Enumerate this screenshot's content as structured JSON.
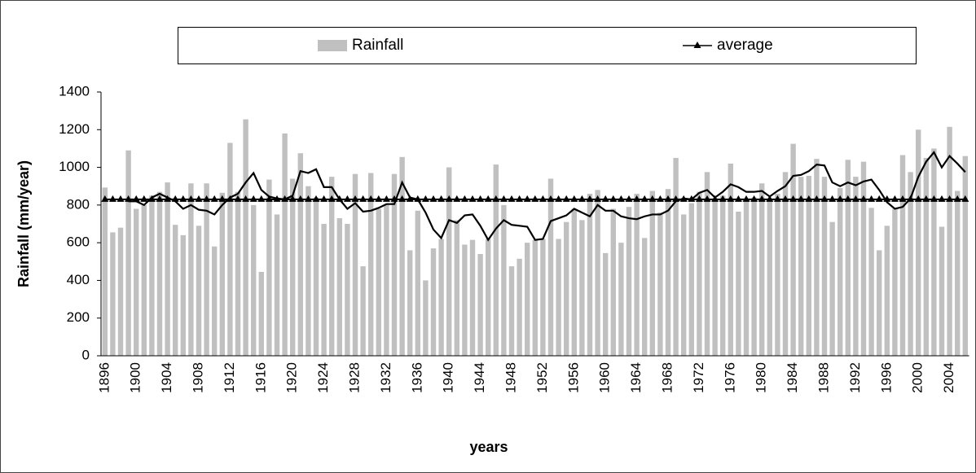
{
  "chart_data": {
    "type": "bar",
    "x_label": "years",
    "y_label": "Rainfall (mm/year)",
    "categories": [
      "1896",
      null,
      null,
      null,
      "1900",
      null,
      null,
      null,
      "1904",
      null,
      null,
      null,
      "1908",
      null,
      null,
      null,
      "1912",
      null,
      null,
      null,
      "1916",
      null,
      null,
      null,
      "1920",
      null,
      null,
      null,
      "1924",
      null,
      null,
      null,
      "1928",
      null,
      null,
      null,
      "1932",
      null,
      null,
      null,
      "1936",
      null,
      null,
      null,
      "1940",
      null,
      null,
      null,
      "1944",
      null,
      null,
      null,
      "1948",
      null,
      null,
      null,
      "1952",
      null,
      null,
      null,
      "1956",
      null,
      null,
      null,
      "1960",
      null,
      null,
      null,
      "1964",
      null,
      null,
      null,
      "1968",
      null,
      null,
      null,
      "1972",
      null,
      null,
      null,
      "1976",
      null,
      null,
      null,
      "1980",
      null,
      null,
      null,
      "1984",
      null,
      null,
      null,
      "1988",
      null,
      null,
      null,
      "1992",
      null,
      null,
      null,
      "1996",
      null,
      null,
      null,
      "2000",
      null,
      null,
      null,
      "2004",
      null,
      null
    ],
    "series": [
      {
        "name": "Rainfall",
        "type": "bar",
        "color": "#c0c0c0",
        "values": [
          893,
          655,
          680,
          1090,
          780,
          800,
          850,
          870,
          920,
          695,
          640,
          915,
          690,
          915,
          580,
          865,
          1130,
          870,
          1255,
          800,
          445,
          935,
          750,
          1180,
          940,
          1075,
          900,
          840,
          700,
          950,
          730,
          700,
          965,
          475,
          970,
          780,
          800,
          965,
          1055,
          560,
          770,
          400,
          570,
          620,
          1000,
          720,
          590,
          615,
          540,
          620,
          1015,
          800,
          475,
          515,
          600,
          615,
          620,
          940,
          620,
          710,
          780,
          720,
          860,
          880,
          545,
          780,
          600,
          790,
          860,
          625,
          875,
          760,
          885,
          1050,
          750,
          810,
          870,
          975,
          820,
          850,
          1020,
          765,
          820,
          840,
          915,
          830,
          860,
          975,
          1125,
          950,
          955,
          1045,
          950,
          710,
          890,
          1040,
          950,
          1030,
          785,
          560,
          690,
          780,
          1065,
          975,
          1200,
          1050,
          1100,
          685,
          1215,
          875,
          1060
        ]
      },
      {
        "type": "line",
        "color": "#000000",
        "values": [
          null,
          null,
          null,
          820,
          820,
          800,
          840,
          860,
          840,
          820,
          780,
          800,
          775,
          770,
          750,
          800,
          840,
          860,
          920,
          970,
          880,
          845,
          835,
          830,
          850,
          980,
          970,
          990,
          895,
          895,
          830,
          780,
          810,
          765,
          770,
          785,
          805,
          805,
          920,
          840,
          830,
          760,
          670,
          625,
          720,
          705,
          745,
          750,
          690,
          615,
          675,
          720,
          695,
          690,
          685,
          615,
          620,
          715,
          730,
          745,
          780,
          760,
          740,
          800,
          770,
          770,
          740,
          730,
          725,
          740,
          750,
          750,
          770,
          820,
          835,
          830,
          865,
          880,
          840,
          870,
          910,
          895,
          870,
          870,
          875,
          845,
          875,
          900,
          955,
          960,
          980,
          1015,
          1010,
          920,
          900,
          920,
          905,
          925,
          935,
          880,
          815,
          780,
          790,
          835,
          950,
          1030,
          1080,
          1000,
          1060,
          1020,
          975
        ]
      },
      {
        "name": "average",
        "type": "line",
        "marker": "triangle",
        "color": "#000000",
        "values": [
          830,
          830,
          830,
          830,
          830,
          830,
          830,
          830,
          830,
          830,
          830,
          830,
          830,
          830,
          830,
          830,
          830,
          830,
          830,
          830,
          830,
          830,
          830,
          830,
          830,
          830,
          830,
          830,
          830,
          830,
          830,
          830,
          830,
          830,
          830,
          830,
          830,
          830,
          830,
          830,
          830,
          830,
          830,
          830,
          830,
          830,
          830,
          830,
          830,
          830,
          830,
          830,
          830,
          830,
          830,
          830,
          830,
          830,
          830,
          830,
          830,
          830,
          830,
          830,
          830,
          830,
          830,
          830,
          830,
          830,
          830,
          830,
          830,
          830,
          830,
          830,
          830,
          830,
          830,
          830,
          830,
          830,
          830,
          830,
          830,
          830,
          830,
          830,
          830,
          830,
          830,
          830,
          830,
          830,
          830,
          830,
          830,
          830,
          830,
          830,
          830,
          830,
          830,
          830,
          830,
          830,
          830,
          830,
          830,
          830,
          830
        ]
      }
    ],
    "ylim": [
      0,
      1400
    ],
    "yticks": [
      0,
      200,
      400,
      600,
      800,
      1000,
      1200,
      1400
    ],
    "grid": false
  }
}
